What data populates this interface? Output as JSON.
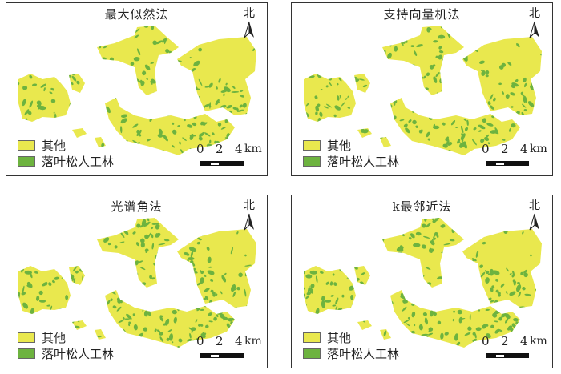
{
  "colors": {
    "other": "#e9e84e",
    "larch": "#6db33f"
  },
  "panels": [
    {
      "title": "最大似然法",
      "seed": 11
    },
    {
      "title": "支持向量机法",
      "seed": 23
    },
    {
      "title": "光谱角法",
      "seed": 37
    },
    {
      "title": "k最邻近法",
      "seed": 53
    }
  ],
  "north_label": "北",
  "legend": [
    {
      "label": "其他",
      "color": "#e9e84e"
    },
    {
      "label": "落叶松人工林",
      "color": "#6db33f"
    }
  ],
  "scale": {
    "ticks": [
      "0",
      "2",
      "4"
    ],
    "unit": "km"
  }
}
